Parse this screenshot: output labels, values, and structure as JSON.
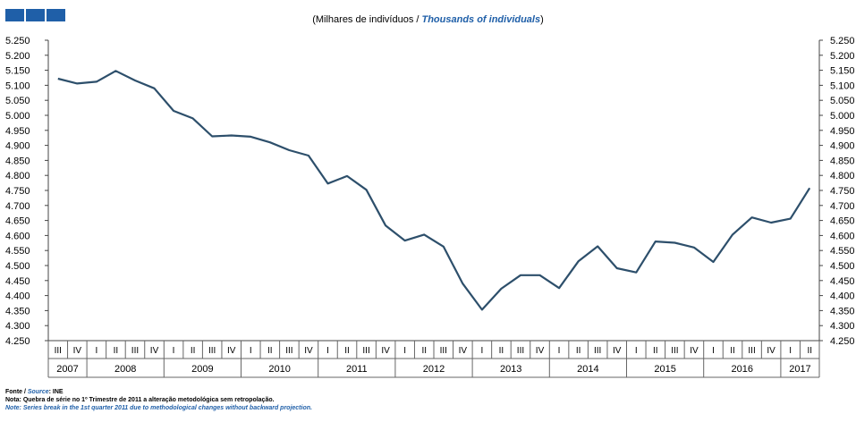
{
  "header": {
    "subtitle_pt": "(Milhares de indivíduos / ",
    "subtitle_en": "Thousands of individuals",
    "subtitle_close": ")"
  },
  "footer": {
    "source_label_pt": "Fonte / ",
    "source_label_en": "Source",
    "source_value": ": INE",
    "note_pt": "Nota: Quebra de série no 1º Trimestre de 2011 a alteração metodológica sem retropolação.",
    "note_en": "Note: Series break in the 1st quarter 2011 due to methodological changes without backward projection."
  },
  "colors": {
    "line": "#2d4f6b",
    "brand": "#1f5fa8",
    "grid": "#888888"
  },
  "chart_data": {
    "type": "line",
    "title": "",
    "xlabel": "",
    "ylabel": "",
    "ylim": [
      4250,
      5250
    ],
    "yticks": [
      "4.250",
      "4.300",
      "4.350",
      "4.400",
      "4.450",
      "4.500",
      "4.550",
      "4.600",
      "4.650",
      "4.700",
      "4.750",
      "4.800",
      "4.850",
      "4.900",
      "4.950",
      "5.000",
      "5.050",
      "5.100",
      "5.150",
      "5.200",
      "5.250"
    ],
    "quarters": [
      "III",
      "IV",
      "I",
      "II",
      "III",
      "IV",
      "I",
      "II",
      "III",
      "IV",
      "I",
      "II",
      "III",
      "IV",
      "I",
      "II",
      "III",
      "IV",
      "I",
      "II",
      "III",
      "IV",
      "I",
      "II",
      "III",
      "IV",
      "I",
      "II",
      "III",
      "IV",
      "I",
      "II",
      "III",
      "IV",
      "I",
      "II",
      "III",
      "IV",
      "I",
      "II"
    ],
    "years": [
      {
        "label": "2007",
        "quarters": 2
      },
      {
        "label": "2008",
        "quarters": 4
      },
      {
        "label": "2009",
        "quarters": 4
      },
      {
        "label": "2010",
        "quarters": 4
      },
      {
        "label": "2011",
        "quarters": 4
      },
      {
        "label": "2012",
        "quarters": 4
      },
      {
        "label": "2013",
        "quarters": 4
      },
      {
        "label": "2014",
        "quarters": 4
      },
      {
        "label": "2015",
        "quarters": 4
      },
      {
        "label": "2016",
        "quarters": 4
      },
      {
        "label": "2017",
        "quarters": 2
      }
    ],
    "series": [
      {
        "values": [
          5122,
          5106,
          5112,
          5148,
          5116,
          5090,
          5015,
          4990,
          4930,
          4933,
          4929,
          4910,
          4884,
          4866,
          4773,
          4798,
          4752,
          4633,
          4583,
          4603,
          4563,
          4440,
          4353,
          4423,
          4468,
          4468,
          4425,
          4514,
          4564,
          4491,
          4477,
          4580,
          4576,
          4560,
          4512,
          4603,
          4660,
          4643,
          4656,
          4758
        ]
      }
    ]
  }
}
